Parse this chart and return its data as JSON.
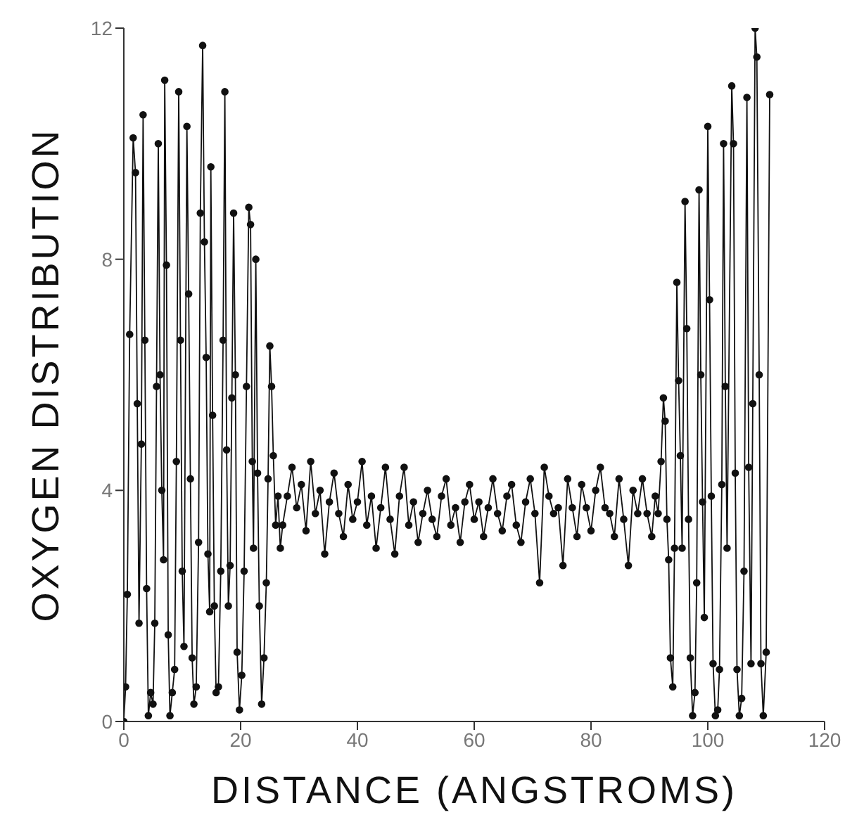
{
  "chart_data": {
    "type": "line",
    "xlabel": "DISTANCE (ANGSTROMS)",
    "ylabel": "OXYGEN DISTRIBUTION",
    "x": [
      0,
      0.3,
      0.6,
      1.0,
      1.6,
      2.0,
      2.3,
      2.6,
      3.0,
      3.3,
      3.6,
      3.9,
      4.2,
      4.6,
      5.0,
      5.3,
      5.6,
      5.9,
      6.2,
      6.5,
      6.8,
      7.0,
      7.3,
      7.6,
      7.9,
      8.3,
      8.7,
      9.0,
      9.4,
      9.7,
      10.0,
      10.3,
      10.8,
      11.1,
      11.4,
      11.7,
      12.0,
      12.4,
      12.8,
      13.1,
      13.5,
      13.8,
      14.1,
      14.4,
      14.7,
      14.9,
      15.2,
      15.5,
      15.8,
      16.2,
      16.6,
      17.0,
      17.3,
      17.6,
      17.9,
      18.2,
      18.5,
      18.8,
      19.1,
      19.4,
      19.8,
      20.2,
      20.6,
      21.0,
      21.4,
      21.7,
      22.0,
      22.2,
      22.6,
      22.9,
      23.2,
      23.6,
      24.0,
      24.4,
      24.7,
      25.0,
      25.3,
      25.6,
      26.0,
      26.4,
      26.8,
      27.2,
      28.0,
      28.8,
      29.6,
      30.4,
      31.2,
      32.0,
      32.8,
      33.6,
      34.4,
      35.2,
      36.0,
      36.8,
      37.6,
      38.4,
      39.2,
      40.0,
      40.8,
      41.6,
      42.4,
      43.2,
      44.0,
      44.8,
      45.6,
      46.4,
      47.2,
      48.0,
      48.8,
      49.6,
      50.4,
      51.2,
      52.0,
      52.8,
      53.6,
      54.4,
      55.2,
      56.0,
      56.8,
      57.6,
      58.4,
      59.2,
      60.0,
      60.8,
      61.6,
      62.4,
      63.2,
      64.0,
      64.8,
      65.6,
      66.4,
      67.2,
      68.0,
      68.8,
      69.6,
      70.4,
      71.2,
      72.0,
      72.8,
      73.6,
      74.4,
      75.2,
      76.0,
      76.8,
      77.6,
      78.4,
      79.2,
      80.0,
      80.8,
      81.6,
      82.4,
      83.2,
      84.0,
      84.8,
      85.6,
      86.4,
      87.2,
      88.0,
      88.8,
      89.6,
      90.4,
      91.0,
      91.5,
      92.0,
      92.4,
      92.7,
      93.0,
      93.3,
      93.6,
      94.0,
      94.3,
      94.7,
      95.0,
      95.3,
      95.6,
      96.1,
      96.4,
      96.7,
      97.0,
      97.4,
      97.8,
      98.1,
      98.5,
      98.8,
      99.1,
      99.4,
      100.0,
      100.3,
      100.6,
      100.9,
      101.3,
      101.7,
      102.0,
      102.4,
      102.7,
      103.0,
      103.3,
      104.1,
      104.4,
      104.7,
      105.0,
      105.4,
      105.8,
      106.2,
      106.7,
      107.0,
      107.4,
      107.7,
      108.1,
      108.4,
      108.8,
      109.1,
      109.5,
      110.0,
      110.6
    ],
    "series": [
      {
        "color": "#111111",
        "values": [
          0,
          0.6,
          2.2,
          6.7,
          10.1,
          9.5,
          5.5,
          1.7,
          4.8,
          10.5,
          6.6,
          2.3,
          0.1,
          0.5,
          0.3,
          1.7,
          5.8,
          10.0,
          6.0,
          4.0,
          2.8,
          11.1,
          7.9,
          1.5,
          0.1,
          0.5,
          0.9,
          4.5,
          10.9,
          6.6,
          2.6,
          1.3,
          10.3,
          7.4,
          4.2,
          1.1,
          0.3,
          0.6,
          3.1,
          8.8,
          11.7,
          8.3,
          6.3,
          2.9,
          1.9,
          9.6,
          5.3,
          2.0,
          0.5,
          0.6,
          2.6,
          6.6,
          10.9,
          4.7,
          2.0,
          2.7,
          5.6,
          8.8,
          6.0,
          1.2,
          0.2,
          0.8,
          2.6,
          5.8,
          8.9,
          8.6,
          4.5,
          3.0,
          8.0,
          4.3,
          2.0,
          0.3,
          1.1,
          2.4,
          4.2,
          6.5,
          5.8,
          4.6,
          3.4,
          3.9,
          3.0,
          3.4,
          3.9,
          4.4,
          3.7,
          4.1,
          3.3,
          4.5,
          3.6,
          4.0,
          2.9,
          3.8,
          4.3,
          3.6,
          3.2,
          4.1,
          3.5,
          3.8,
          4.5,
          3.4,
          3.9,
          3.0,
          3.7,
          4.4,
          3.5,
          2.9,
          3.9,
          4.4,
          3.4,
          3.8,
          3.1,
          3.6,
          4.0,
          3.5,
          3.2,
          3.9,
          4.2,
          3.4,
          3.7,
          3.1,
          3.8,
          4.1,
          3.5,
          3.8,
          3.2,
          3.7,
          4.2,
          3.6,
          3.3,
          3.9,
          4.1,
          3.4,
          3.1,
          3.8,
          4.2,
          3.6,
          2.4,
          4.4,
          3.9,
          3.6,
          3.7,
          2.7,
          4.2,
          3.7,
          3.2,
          4.1,
          3.7,
          3.3,
          4.0,
          4.4,
          3.7,
          3.6,
          3.2,
          4.2,
          3.5,
          2.7,
          4.0,
          3.6,
          4.2,
          3.6,
          3.2,
          3.9,
          3.6,
          4.5,
          5.6,
          5.2,
          3.5,
          2.8,
          1.1,
          0.6,
          3.0,
          7.6,
          5.9,
          4.6,
          3.0,
          9.0,
          6.8,
          3.5,
          1.1,
          0.1,
          0.5,
          2.4,
          9.2,
          6.0,
          3.8,
          1.8,
          10.3,
          7.3,
          3.9,
          1.0,
          0.1,
          0.2,
          0.9,
          4.1,
          10.0,
          5.8,
          3.0,
          11.0,
          10.0,
          4.3,
          0.9,
          0.1,
          0.4,
          2.6,
          10.8,
          4.4,
          1.0,
          5.5,
          12.0,
          11.5,
          6.0,
          1.0,
          0.1,
          1.2,
          10.85
        ]
      }
    ],
    "xlim": [
      0,
      120
    ],
    "xticks": [
      0,
      20,
      40,
      60,
      80,
      100,
      120
    ],
    "ylim": [
      0,
      12
    ],
    "yticks": [
      0,
      4,
      8,
      12
    ],
    "marker": "circle",
    "line_style": "solid",
    "grid": false,
    "legend": false
  }
}
